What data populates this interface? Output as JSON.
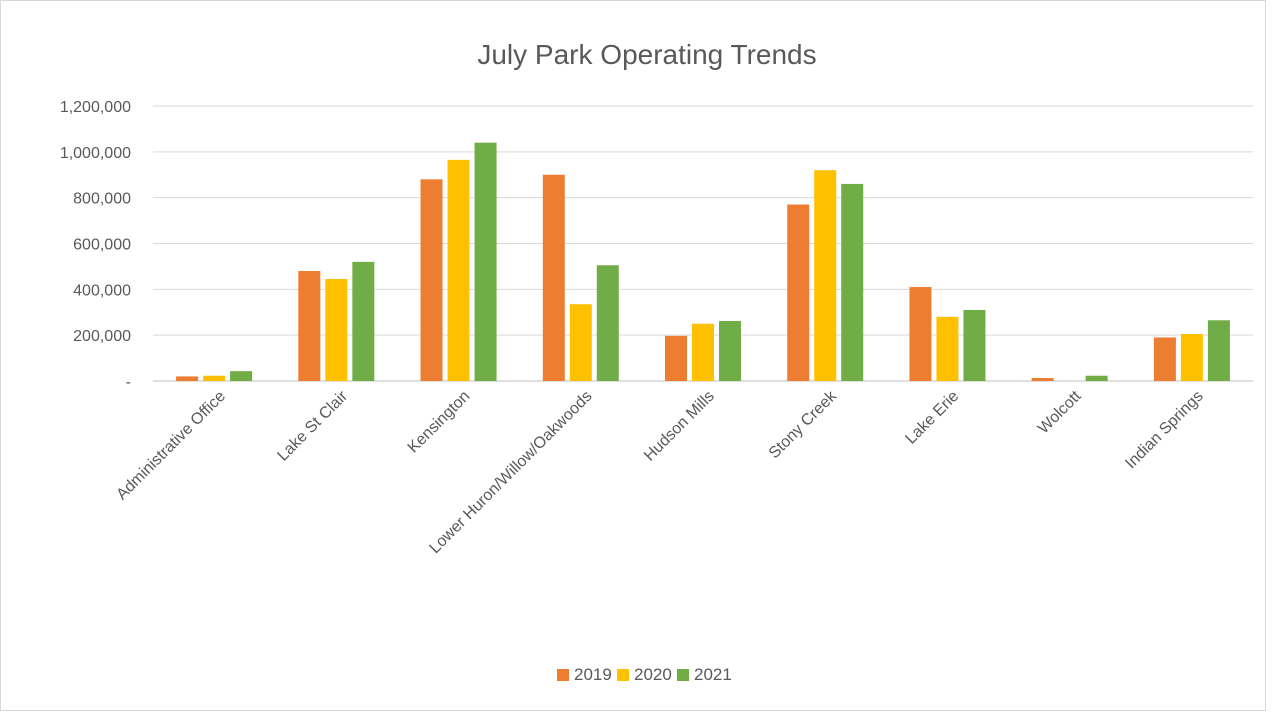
{
  "chart_data": {
    "type": "bar",
    "title": "July Park Operating Trends",
    "categories": [
      "Administrative Office",
      "Lake St Clair",
      "Kensington",
      "Lower Huron/Willow/Oakwoods",
      "Hudson Mills",
      "Stony Creek",
      "Lake Erie",
      "Wolcott",
      "Indian Springs"
    ],
    "series": [
      {
        "name": "2019",
        "color": "#ed7d31",
        "values": [
          20000,
          480000,
          880000,
          900000,
          197000,
          770000,
          410000,
          13000,
          190000
        ]
      },
      {
        "name": "2020",
        "color": "#ffc000",
        "values": [
          23000,
          445000,
          965000,
          335000,
          250000,
          920000,
          280000,
          0,
          205000
        ]
      },
      {
        "name": "2021",
        "color": "#70ad47",
        "values": [
          43000,
          520000,
          1040000,
          505000,
          262000,
          860000,
          310000,
          23000,
          265000
        ]
      }
    ],
    "yticks": [
      {
        "value": 0,
        "label": "-"
      },
      {
        "value": 200000,
        "label": "200,000"
      },
      {
        "value": 400000,
        "label": "400,000"
      },
      {
        "value": 600000,
        "label": "600,000"
      },
      {
        "value": 800000,
        "label": "800,000"
      },
      {
        "value": 1000000,
        "label": "1,000,000"
      },
      {
        "value": 1200000,
        "label": "1,200,000"
      }
    ],
    "ylim": [
      0,
      1200000
    ],
    "grid": true,
    "legend": "bottom"
  }
}
